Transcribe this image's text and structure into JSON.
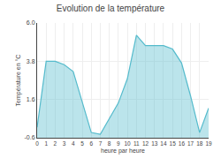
{
  "chart_data": {
    "type": "area",
    "title": "Evolution de la température",
    "xlabel": "heure par heure",
    "ylabel": "Température en °C",
    "x": [
      0,
      1,
      2,
      3,
      4,
      5,
      6,
      7,
      8,
      9,
      10,
      11,
      12,
      13,
      14,
      15,
      16,
      17,
      18,
      19
    ],
    "values": [
      0.0,
      3.8,
      3.8,
      3.6,
      3.2,
      1.4,
      -0.3,
      -0.4,
      0.5,
      1.4,
      2.8,
      5.3,
      4.7,
      4.7,
      4.7,
      4.5,
      3.7,
      1.8,
      -0.3,
      1.1
    ],
    "color": "#55bbcc",
    "xlim": [
      0,
      19
    ],
    "ylim": [
      -0.6,
      6.0
    ],
    "xticks": [
      0,
      1,
      2,
      3,
      4,
      5,
      6,
      7,
      8,
      9,
      10,
      11,
      12,
      13,
      14,
      15,
      16,
      17,
      18,
      19
    ],
    "yticks": [
      -0.6,
      1.6,
      3.8,
      {
        "value": 6.0,
        "label": "6.0"
      }
    ],
    "grid": true
  }
}
